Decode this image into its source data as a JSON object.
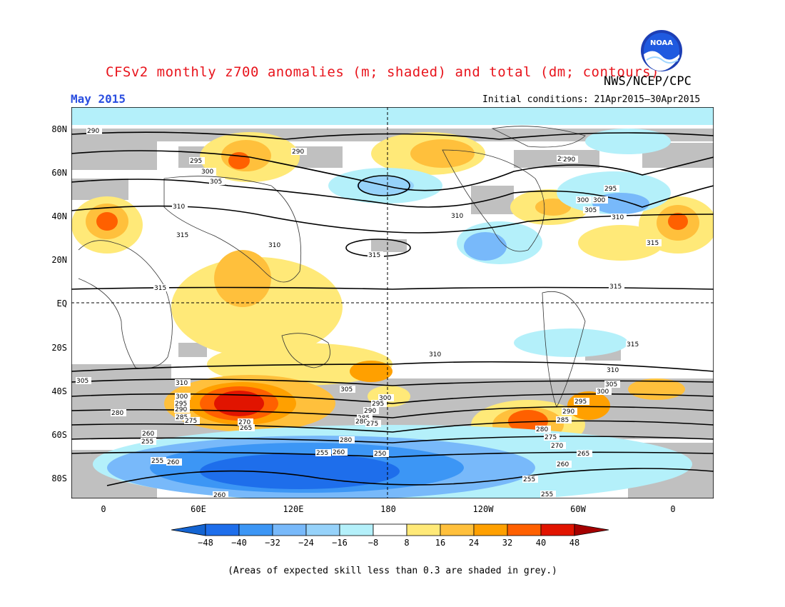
{
  "title": "CFSv2 monthly z700 anomalies (m; shaded) and total (dm; contours)",
  "organization": "NWS/NCEP/CPC",
  "logo_text": "NOAA",
  "month_label": "May 2015",
  "initial_conditions": "Initial conditions: 21Apr2015–30Apr2015",
  "footnote": "(Areas of expected skill less than 0.3 are shaded in grey.)",
  "axes": {
    "y_ticks": [
      "80N",
      "60N",
      "40N",
      "20N",
      "EQ",
      "20S",
      "40S",
      "60S",
      "80S"
    ],
    "x_ticks": [
      "0",
      "60E",
      "120E",
      "180",
      "120W",
      "60W",
      "0"
    ]
  },
  "colorbar": {
    "ticks": [
      "−48",
      "−40",
      "−32",
      "−24",
      "−16",
      "−8",
      "8",
      "16",
      "24",
      "32",
      "40",
      "48"
    ],
    "colors": [
      "#1464d2",
      "#1e6eeb",
      "#3c96f5",
      "#78b9fa",
      "#96d2fa",
      "#b4f0fa",
      "#ffffff",
      "#ffe978",
      "#ffc03c",
      "#ffa000",
      "#ff6000",
      "#e11400",
      "#a50000"
    ]
  },
  "contour_labels": [
    {
      "text": "290"
    },
    {
      "text": "295"
    },
    {
      "text": "300"
    },
    {
      "text": "305"
    },
    {
      "text": "310"
    },
    {
      "text": "315"
    },
    {
      "text": "310"
    },
    {
      "text": "315"
    },
    {
      "text": "290"
    },
    {
      "text": "295"
    },
    {
      "text": "300"
    },
    {
      "text": "305"
    },
    {
      "text": "310"
    },
    {
      "text": "315"
    },
    {
      "text": "290"
    },
    {
      "text": "295"
    },
    {
      "text": "300"
    },
    {
      "text": "305"
    },
    {
      "text": "310"
    },
    {
      "text": "315"
    },
    {
      "text": "315"
    },
    {
      "text": "315"
    },
    {
      "text": "310"
    },
    {
      "text": "315"
    },
    {
      "text": "310"
    },
    {
      "text": "305"
    },
    {
      "text": "305"
    },
    {
      "text": "310"
    },
    {
      "text": "300"
    },
    {
      "text": "295"
    },
    {
      "text": "290"
    },
    {
      "text": "285"
    },
    {
      "text": "280"
    },
    {
      "text": "275"
    },
    {
      "text": "270"
    },
    {
      "text": "265"
    },
    {
      "text": "260"
    },
    {
      "text": "255"
    },
    {
      "text": "260"
    },
    {
      "text": "255"
    },
    {
      "text": "260"
    },
    {
      "text": "255"
    },
    {
      "text": "250"
    },
    {
      "text": "305"
    },
    {
      "text": "300"
    },
    {
      "text": "295"
    },
    {
      "text": "290"
    },
    {
      "text": "285"
    },
    {
      "text": "280"
    },
    {
      "text": "275"
    },
    {
      "text": "300"
    },
    {
      "text": "295"
    },
    {
      "text": "290"
    },
    {
      "text": "285"
    },
    {
      "text": "280"
    },
    {
      "text": "275"
    },
    {
      "text": "270"
    },
    {
      "text": "265"
    },
    {
      "text": "260"
    },
    {
      "text": "255"
    },
    {
      "text": "255"
    },
    {
      "text": "305"
    },
    {
      "text": "260"
    },
    {
      "text": "280"
    }
  ]
}
